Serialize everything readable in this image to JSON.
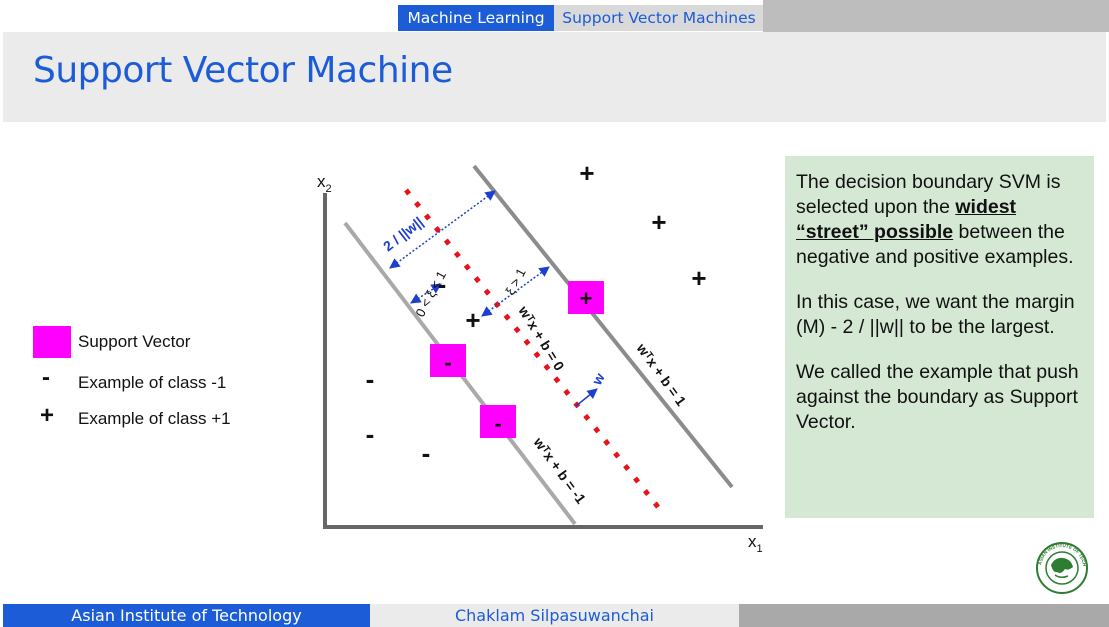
{
  "header": {
    "breadcrumb_course": "Machine Learning",
    "breadcrumb_topic": "Support Vector Machines"
  },
  "slide": {
    "title": "Support Vector Machine"
  },
  "legend": {
    "support_vector": "Support Vector",
    "neg_symbol": "-",
    "neg_label": "Example of class -1",
    "pos_symbol": "+",
    "pos_label": "Example of class +1"
  },
  "diagram": {
    "x_axis_label": "x1",
    "y_axis_label": "x2",
    "hyperplane_zero": "wᵀx + b = 0",
    "hyperplane_plus": "wᵀx + b = 1",
    "hyperplane_minus": "wᵀx + b = -1",
    "margin_label": "2 / ||w||",
    "slack_small": "0 < ξ < 1",
    "slack_large": "ξ > 1",
    "normal_vector_label": "w",
    "neg_marker": "-",
    "pos_marker": "+",
    "colors": {
      "support_vector": "#ff00ff",
      "decision_boundary": "#e8121b",
      "margin_line": "#8c8c8c",
      "annotation": "#1c3fcf"
    }
  },
  "explanation": {
    "p1_pre": "The decision boundary SVM is selected upon the ",
    "p1_emph": "widest “street” possible",
    "p1_post": " between the negative and positive examples.",
    "p2": "In this case, we want the margin (M) - 2 / ||w|| to be the largest.",
    "p3": "We called the example that push against the boundary as Support Vector."
  },
  "footer": {
    "institution": "Asian Institute of Technology",
    "author": "Chaklam Silpasuwanchai"
  },
  "logo_text": "ASIAN INSTITUTE OF TECHNOLOGY"
}
